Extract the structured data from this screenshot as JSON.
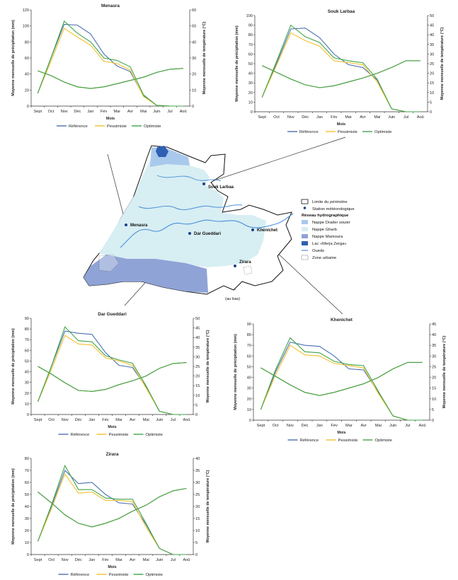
{
  "common": {
    "months": [
      "Sept",
      "Oct",
      "Nov",
      "Déc",
      "Jan",
      "Fév",
      "Mar",
      "Avr",
      "Mai",
      "Juin",
      "Jul",
      "Aoû"
    ],
    "xlabel": "Mois",
    "ylabel_left": "Moyenne mensuelle de précipitation (mm)",
    "ylabel_right": "Moyenne mensuelle de température (°C)",
    "colors": {
      "reference": "#4a6fb0",
      "pessimiste": "#f2c02e",
      "optimiste": "#3fa54a"
    }
  },
  "chart_data": [
    {
      "type": "line",
      "title": "Menasra",
      "categories": [
        "Sept",
        "Oct",
        "Nov",
        "Déc",
        "Jan",
        "Fév",
        "Mar",
        "Avr",
        "Mai",
        "Juin",
        "Jul",
        "Aoû"
      ],
      "ylim": [
        0,
        120
      ],
      "y2lim": [
        0,
        60
      ],
      "yticks": [
        0,
        20,
        40,
        60,
        80,
        100,
        120
      ],
      "y2ticks": [
        0,
        10,
        20,
        30,
        40,
        50,
        60
      ],
      "series": [
        {
          "name": "Référence",
          "axis": "left",
          "values": [
            16,
            60,
            102,
            101,
            90,
            65,
            50,
            43,
            13,
            1,
            0,
            0
          ]
        },
        {
          "name": "Pessimiste",
          "axis": "left",
          "values": [
            16,
            56,
            97,
            86,
            76,
            56,
            53,
            45,
            12,
            1,
            0,
            0
          ]
        },
        {
          "name": "Optimiste",
          "axis": "left",
          "values": [
            16,
            60,
            106,
            91,
            80,
            60,
            57,
            49,
            14,
            1,
            0,
            0
          ]
        },
        {
          "name": "Référence",
          "axis": "right",
          "values": [
            22,
            19,
            15,
            12,
            11,
            12,
            14,
            16,
            18,
            21,
            23,
            23.5
          ]
        },
        {
          "name": "Pessimiste",
          "axis": "right",
          "values": [
            22,
            19,
            15,
            12,
            11,
            12,
            14,
            16,
            18,
            21,
            23,
            23.5
          ]
        },
        {
          "name": "Optimiste",
          "axis": "right",
          "values": [
            22,
            19,
            15,
            12,
            11,
            12,
            14,
            16,
            18,
            21,
            23,
            23.5
          ]
        }
      ],
      "legend": [
        "Référence",
        "Pessimiste",
        "Optimiste"
      ]
    },
    {
      "type": "line",
      "title": "Souk Larbaa",
      "categories": [
        "Sept",
        "Oct",
        "Nov",
        "Déc",
        "Jan",
        "Fév",
        "Mar",
        "Avr",
        "Mai",
        "Juin",
        "Jul",
        "Aoû"
      ],
      "ylim": [
        0,
        100
      ],
      "y2lim": [
        0,
        50
      ],
      "yticks": [
        0,
        10,
        20,
        30,
        40,
        50,
        60,
        70,
        80,
        90,
        100
      ],
      "y2ticks": [
        0,
        5,
        10,
        15,
        20,
        25,
        30,
        35,
        40,
        45,
        50
      ],
      "series": [
        {
          "name": "Référence",
          "axis": "left",
          "values": [
            15,
            50,
            86,
            87,
            77,
            60,
            49,
            46,
            33,
            3,
            0,
            0
          ]
        },
        {
          "name": "Pessimiste",
          "axis": "left",
          "values": [
            15,
            48,
            82,
            74,
            68,
            53,
            51,
            49,
            31,
            3,
            0,
            0
          ]
        },
        {
          "name": "Optimiste",
          "axis": "left",
          "values": [
            15,
            52,
            90,
            78,
            72,
            56,
            53,
            51,
            34,
            3,
            0,
            0
          ]
        },
        {
          "name": "Référence",
          "axis": "right",
          "values": [
            24,
            20.5,
            17,
            14,
            12.5,
            13.5,
            15.5,
            17.5,
            20,
            23,
            26.5,
            26.5
          ]
        },
        {
          "name": "Pessimiste",
          "axis": "right",
          "values": [
            24,
            20.5,
            17,
            14,
            12.5,
            13.5,
            15.5,
            17.5,
            20,
            23,
            26.5,
            26.5
          ]
        },
        {
          "name": "Optimiste",
          "axis": "right",
          "values": [
            24,
            20.5,
            17,
            14,
            12.5,
            13.5,
            15.5,
            17.5,
            20,
            23,
            26.5,
            26.5
          ]
        }
      ],
      "legend": [
        "Référence",
        "Pessimiste",
        "Optimiste"
      ]
    },
    {
      "type": "line",
      "title": "Dar Gueddari",
      "categories": [
        "Sept",
        "Oct",
        "Nov",
        "Déc",
        "Jan",
        "Fév",
        "Mar",
        "Avr",
        "Mai",
        "Juin",
        "Jul",
        "Aoû"
      ],
      "ylim": [
        0,
        90
      ],
      "y2lim": [
        0,
        50
      ],
      "yticks": [
        0,
        10,
        20,
        30,
        40,
        50,
        60,
        70,
        80,
        90
      ],
      "y2ticks": [
        0,
        5,
        10,
        15,
        20,
        25,
        30,
        35,
        40,
        45,
        50
      ],
      "series": [
        {
          "name": "Référence",
          "axis": "left",
          "values": [
            12,
            45,
            78,
            76,
            75,
            58,
            46,
            44,
            26,
            3,
            0,
            0
          ]
        },
        {
          "name": "Pessimiste",
          "axis": "left",
          "values": [
            12,
            42,
            74,
            66,
            65,
            53,
            50,
            46,
            25,
            3,
            0,
            0
          ]
        },
        {
          "name": "Optimiste",
          "axis": "left",
          "values": [
            12,
            45,
            82,
            69,
            68,
            55,
            51,
            48,
            27,
            3,
            0,
            0
          ]
        },
        {
          "name": "Référence",
          "axis": "right",
          "values": [
            25,
            21,
            16.5,
            12.5,
            12,
            13,
            15.5,
            17.5,
            20,
            24,
            26.5,
            27
          ]
        },
        {
          "name": "Pessimiste",
          "axis": "right",
          "values": [
            25,
            21,
            16.5,
            12.5,
            12,
            13,
            15.5,
            17.5,
            20,
            24,
            26.5,
            27
          ]
        },
        {
          "name": "Optimiste",
          "axis": "right",
          "values": [
            25,
            21,
            16.5,
            12.5,
            12,
            13,
            15.5,
            17.5,
            20,
            24,
            26.5,
            27
          ]
        }
      ],
      "legend": [
        "Référence",
        "Pessimiste",
        "Optimiste"
      ]
    },
    {
      "type": "line",
      "title": "Khenichet",
      "categories": [
        "Sept",
        "Oct",
        "Nov",
        "Déc",
        "Jan",
        "Fév",
        "Mar",
        "Avr",
        "Mai",
        "Juin",
        "Jul",
        "Aoû"
      ],
      "ylim": [
        0,
        90
      ],
      "y2lim": [
        0,
        45
      ],
      "yticks": [
        0,
        10,
        20,
        30,
        40,
        50,
        60,
        70,
        80,
        90
      ],
      "y2ticks": [
        0,
        5,
        10,
        15,
        20,
        25,
        30,
        35,
        40,
        45
      ],
      "series": [
        {
          "name": "Référence",
          "axis": "left",
          "values": [
            10,
            45,
            73,
            70,
            69,
            60,
            48,
            47,
            26,
            4,
            0,
            0
          ]
        },
        {
          "name": "Pessimiste",
          "axis": "left",
          "values": [
            10,
            42,
            70,
            61,
            60,
            53,
            51,
            49,
            25,
            4,
            0,
            0
          ]
        },
        {
          "name": "Optimiste",
          "axis": "left",
          "values": [
            10,
            47,
            77,
            64,
            63,
            55,
            52,
            51,
            27,
            4,
            0,
            0
          ]
        },
        {
          "name": "Référence",
          "axis": "right",
          "values": [
            24.5,
            20.5,
            16.5,
            13,
            11.5,
            13,
            15,
            17,
            20,
            24,
            27,
            27
          ]
        },
        {
          "name": "Pessimiste",
          "axis": "right",
          "values": [
            24.5,
            20.5,
            16.5,
            13,
            11.5,
            13,
            15,
            17,
            20,
            24,
            27,
            27
          ]
        },
        {
          "name": "Optimiste",
          "axis": "right",
          "values": [
            24.5,
            20.5,
            16.5,
            13,
            11.5,
            13,
            15,
            17,
            20,
            24,
            27,
            27
          ]
        }
      ],
      "legend": [
        "Référence",
        "Pessimiste",
        "Optimiste"
      ]
    },
    {
      "type": "line",
      "title": "Zirara",
      "categories": [
        "Sept",
        "Oct",
        "Nov",
        "Déc",
        "Jan",
        "Fév",
        "Mar",
        "Avr",
        "Mai",
        "Juin",
        "Jul",
        "Aoû"
      ],
      "ylim": [
        0,
        80
      ],
      "y2lim": [
        0,
        40
      ],
      "yticks": [
        0,
        10,
        20,
        30,
        40,
        50,
        60,
        70,
        80
      ],
      "y2ticks": [
        0,
        5,
        10,
        15,
        20,
        25,
        30,
        35,
        40
      ],
      "series": [
        {
          "name": "Référence",
          "axis": "left",
          "values": [
            11,
            40,
            70,
            59,
            60,
            50,
            43,
            42,
            25,
            5,
            0,
            0
          ]
        },
        {
          "name": "Pessimiste",
          "axis": "left",
          "values": [
            11,
            38,
            67,
            51,
            52,
            45,
            45,
            44,
            23,
            5,
            0,
            0
          ]
        },
        {
          "name": "Optimiste",
          "axis": "left",
          "values": [
            11,
            41,
            74,
            54,
            54,
            47,
            46,
            46,
            26,
            5,
            0,
            0
          ]
        },
        {
          "name": "Référence",
          "axis": "right",
          "values": [
            26,
            21.5,
            16.5,
            13,
            11.5,
            13,
            15,
            18,
            20.5,
            24,
            26.5,
            27.5
          ]
        },
        {
          "name": "Pessimiste",
          "axis": "right",
          "values": [
            26,
            21.5,
            16.5,
            13,
            11.5,
            13,
            15,
            18,
            20.5,
            24,
            26.5,
            27.5
          ]
        },
        {
          "name": "Optimiste",
          "axis": "right",
          "values": [
            26,
            21.5,
            16.5,
            13,
            11.5,
            13,
            15,
            18,
            20.5,
            24,
            26.5,
            27.5
          ]
        }
      ],
      "legend": [
        "Référence",
        "Pessimiste",
        "Optimiste"
      ]
    }
  ],
  "map": {
    "stations": [
      "Souk Larbaa",
      "Menasra",
      "Dar Gueddari",
      "Khenichet",
      "Zirara"
    ],
    "zirara_note": "(au bas)",
    "legend": {
      "perimetre": "Limite du périmètre",
      "station": "Station météorologique",
      "reseau": "Réseau hydrographique",
      "drader": "Nappe Drader souier",
      "gharb": "Nappe Gharb",
      "mamoura": "Nappe Mamoura",
      "lac": "Lac «Merja Zerga»",
      "oueds": "Oueds",
      "urbaine": "Zone urbaine"
    },
    "colors": {
      "drader": "#a9c9ec",
      "gharb": "#d7eef3",
      "mamoura": "#8fa3d6",
      "lac": "#2f5fb3",
      "oueds": "#4a90d9"
    }
  }
}
